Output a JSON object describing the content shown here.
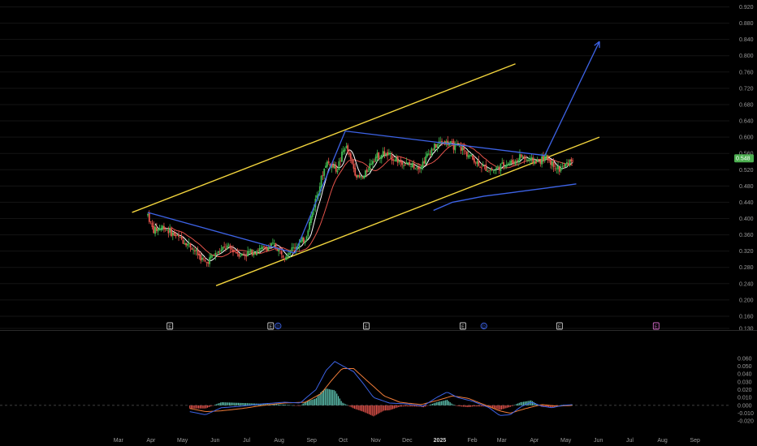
{
  "chart_data": {
    "type": "candlestick",
    "price_panel": {
      "y_ticks": [
        "0.920",
        "0.880",
        "0.840",
        "0.800",
        "0.760",
        "0.720",
        "0.680",
        "0.640",
        "0.600",
        "0.560",
        "0.520",
        "0.480",
        "0.440",
        "0.400",
        "0.360",
        "0.320",
        "0.280",
        "0.240",
        "0.200",
        "0.160",
        "0.130"
      ],
      "ylim": [
        0.13,
        0.925
      ],
      "last_price": "0.548",
      "colors": {
        "up": "#3fb950",
        "down": "#e5534b",
        "channel": "#f2d43d",
        "trend": "#3d63e6",
        "ma_fast": "#ffffff",
        "ma_slow": "#e5534b",
        "ma_long": "#3d63e6",
        "price_badge": "#4caf50"
      },
      "ohlc_anchors": [
        {
          "d": 0,
          "p": 0.41
        },
        {
          "d": 5,
          "p": 0.37
        },
        {
          "d": 15,
          "p": 0.38
        },
        {
          "d": 25,
          "p": 0.36
        },
        {
          "d": 40,
          "p": 0.335
        },
        {
          "d": 55,
          "p": 0.29
        },
        {
          "d": 60,
          "p": 0.305
        },
        {
          "d": 75,
          "p": 0.33
        },
        {
          "d": 90,
          "p": 0.31
        },
        {
          "d": 100,
          "p": 0.32
        },
        {
          "d": 110,
          "p": 0.325
        },
        {
          "d": 120,
          "p": 0.335
        },
        {
          "d": 130,
          "p": 0.31
        },
        {
          "d": 140,
          "p": 0.33
        },
        {
          "d": 150,
          "p": 0.35
        },
        {
          "d": 155,
          "p": 0.4
        },
        {
          "d": 160,
          "p": 0.45
        },
        {
          "d": 170,
          "p": 0.54
        },
        {
          "d": 180,
          "p": 0.52
        },
        {
          "d": 188,
          "p": 0.58
        },
        {
          "d": 195,
          "p": 0.53
        },
        {
          "d": 200,
          "p": 0.5
        },
        {
          "d": 205,
          "p": 0.5
        },
        {
          "d": 215,
          "p": 0.55
        },
        {
          "d": 225,
          "p": 0.56
        },
        {
          "d": 240,
          "p": 0.54
        },
        {
          "d": 250,
          "p": 0.53
        },
        {
          "d": 260,
          "p": 0.53
        },
        {
          "d": 270,
          "p": 0.57
        },
        {
          "d": 280,
          "p": 0.59
        },
        {
          "d": 290,
          "p": 0.58
        },
        {
          "d": 300,
          "p": 0.57
        },
        {
          "d": 310,
          "p": 0.545
        },
        {
          "d": 320,
          "p": 0.525
        },
        {
          "d": 330,
          "p": 0.52
        },
        {
          "d": 340,
          "p": 0.535
        },
        {
          "d": 350,
          "p": 0.54
        },
        {
          "d": 355,
          "p": 0.555
        },
        {
          "d": 360,
          "p": 0.545
        },
        {
          "d": 370,
          "p": 0.54
        },
        {
          "d": 380,
          "p": 0.55
        },
        {
          "d": 385,
          "p": 0.535
        },
        {
          "d": 392,
          "p": 0.52
        },
        {
          "d": 400,
          "p": 0.535
        },
        {
          "d": 405,
          "p": 0.548
        }
      ],
      "ma_long_anchors": [
        {
          "d": 272,
          "p": 0.42
        },
        {
          "d": 290,
          "p": 0.44
        },
        {
          "d": 320,
          "p": 0.455
        },
        {
          "d": 350,
          "p": 0.465
        },
        {
          "d": 380,
          "p": 0.475
        },
        {
          "d": 408,
          "p": 0.485
        }
      ],
      "channel_upper": {
        "from": {
          "d": -15,
          "p": 0.415
        },
        "to": {
          "d": 350,
          "p": 0.78
        }
      },
      "channel_lower": {
        "from": {
          "d": 65,
          "p": 0.235
        },
        "to": {
          "d": 430,
          "p": 0.6
        }
      },
      "trend_lines": [
        {
          "from": {
            "d": 0,
            "p": 0.415
          },
          "to": {
            "d": 140,
            "p": 0.315
          }
        },
        {
          "from": {
            "d": 140,
            "p": 0.315
          },
          "to": {
            "d": 188,
            "p": 0.615
          }
        },
        {
          "from": {
            "d": 188,
            "p": 0.615
          },
          "to": {
            "d": 378,
            "p": 0.555
          }
        }
      ],
      "projection_arrow": {
        "from": {
          "d": 378,
          "p": 0.555
        },
        "to": {
          "d": 430,
          "p": 0.835
        }
      }
    },
    "event_markers": [
      {
        "label": "E",
        "color": "#cccccc",
        "d": 21
      },
      {
        "label": "E",
        "color": "#cccccc",
        "d": 117
      },
      {
        "label": "D",
        "color": "#3d63e6",
        "d": 124
      },
      {
        "label": "E",
        "color": "#cccccc",
        "d": 208
      },
      {
        "label": "E",
        "color": "#cccccc",
        "d": 300
      },
      {
        "label": "D",
        "color": "#3d63e6",
        "d": 320
      },
      {
        "label": "E",
        "color": "#cccccc",
        "d": 392
      },
      {
        "label": "E",
        "color": "#d36ac8",
        "d": 484
      }
    ],
    "macd_panel": {
      "y_ticks": [
        "0.060",
        "0.050",
        "0.040",
        "0.030",
        "0.020",
        "0.010",
        "0.000",
        "-0.010",
        "-0.020"
      ],
      "ylim": [
        -0.025,
        0.062
      ],
      "colors": {
        "macd": "#3d63e6",
        "signal": "#f07c39",
        "hist_up": "#5fc6b4",
        "hist_down": "#e5534b"
      },
      "macd_anchors": [
        {
          "d": 40,
          "v": -0.008
        },
        {
          "d": 55,
          "v": -0.012
        },
        {
          "d": 70,
          "v": -0.003
        },
        {
          "d": 90,
          "v": -0.001
        },
        {
          "d": 110,
          "v": 0.002
        },
        {
          "d": 130,
          "v": 0.004
        },
        {
          "d": 145,
          "v": 0.003
        },
        {
          "d": 160,
          "v": 0.02
        },
        {
          "d": 170,
          "v": 0.045
        },
        {
          "d": 178,
          "v": 0.056
        },
        {
          "d": 186,
          "v": 0.05
        },
        {
          "d": 196,
          "v": 0.043
        },
        {
          "d": 205,
          "v": 0.028
        },
        {
          "d": 215,
          "v": 0.01
        },
        {
          "d": 230,
          "v": 0.003
        },
        {
          "d": 245,
          "v": 0.002
        },
        {
          "d": 262,
          "v": -0.001
        },
        {
          "d": 275,
          "v": 0.01
        },
        {
          "d": 285,
          "v": 0.017
        },
        {
          "d": 295,
          "v": 0.01
        },
        {
          "d": 310,
          "v": 0.005
        },
        {
          "d": 325,
          "v": -0.003
        },
        {
          "d": 335,
          "v": -0.013
        },
        {
          "d": 345,
          "v": -0.012
        },
        {
          "d": 355,
          "v": -0.002
        },
        {
          "d": 365,
          "v": 0.004
        },
        {
          "d": 375,
          "v": -0.001
        },
        {
          "d": 385,
          "v": -0.003
        },
        {
          "d": 395,
          "v": 0.0
        },
        {
          "d": 405,
          "v": 0.001
        }
      ],
      "signal_anchors": [
        {
          "d": 40,
          "v": -0.004
        },
        {
          "d": 55,
          "v": -0.008
        },
        {
          "d": 70,
          "v": -0.007
        },
        {
          "d": 90,
          "v": -0.004
        },
        {
          "d": 110,
          "v": 0.0
        },
        {
          "d": 130,
          "v": 0.003
        },
        {
          "d": 150,
          "v": 0.004
        },
        {
          "d": 165,
          "v": 0.015
        },
        {
          "d": 175,
          "v": 0.032
        },
        {
          "d": 185,
          "v": 0.047
        },
        {
          "d": 196,
          "v": 0.047
        },
        {
          "d": 210,
          "v": 0.03
        },
        {
          "d": 225,
          "v": 0.012
        },
        {
          "d": 240,
          "v": 0.004
        },
        {
          "d": 260,
          "v": 0.001
        },
        {
          "d": 275,
          "v": 0.006
        },
        {
          "d": 290,
          "v": 0.012
        },
        {
          "d": 305,
          "v": 0.009
        },
        {
          "d": 320,
          "v": 0.001
        },
        {
          "d": 335,
          "v": -0.007
        },
        {
          "d": 345,
          "v": -0.01
        },
        {
          "d": 360,
          "v": -0.004
        },
        {
          "d": 375,
          "v": 0.001
        },
        {
          "d": 390,
          "v": -0.001
        },
        {
          "d": 405,
          "v": 0.0
        }
      ]
    },
    "x_axis": {
      "ticks": [
        {
          "label": "Mar",
          "d": -28
        },
        {
          "label": "Apr",
          "d": 3
        },
        {
          "label": "May",
          "d": 33
        },
        {
          "label": "Jun",
          "d": 64
        },
        {
          "label": "Jul",
          "d": 94
        },
        {
          "label": "Aug",
          "d": 125
        },
        {
          "label": "Sep",
          "d": 156
        },
        {
          "label": "Oct",
          "d": 186
        },
        {
          "label": "Nov",
          "d": 217
        },
        {
          "label": "Dec",
          "d": 247
        },
        {
          "label": "2025",
          "d": 278,
          "bold": true
        },
        {
          "label": "Feb",
          "d": 309
        },
        {
          "label": "Mar",
          "d": 337
        },
        {
          "label": "Apr",
          "d": 368
        },
        {
          "label": "May",
          "d": 398
        },
        {
          "label": "Jun",
          "d": 429
        },
        {
          "label": "Jul",
          "d": 459
        },
        {
          "label": "Aug",
          "d": 490
        },
        {
          "label": "Sep",
          "d": 521
        }
      ]
    }
  }
}
